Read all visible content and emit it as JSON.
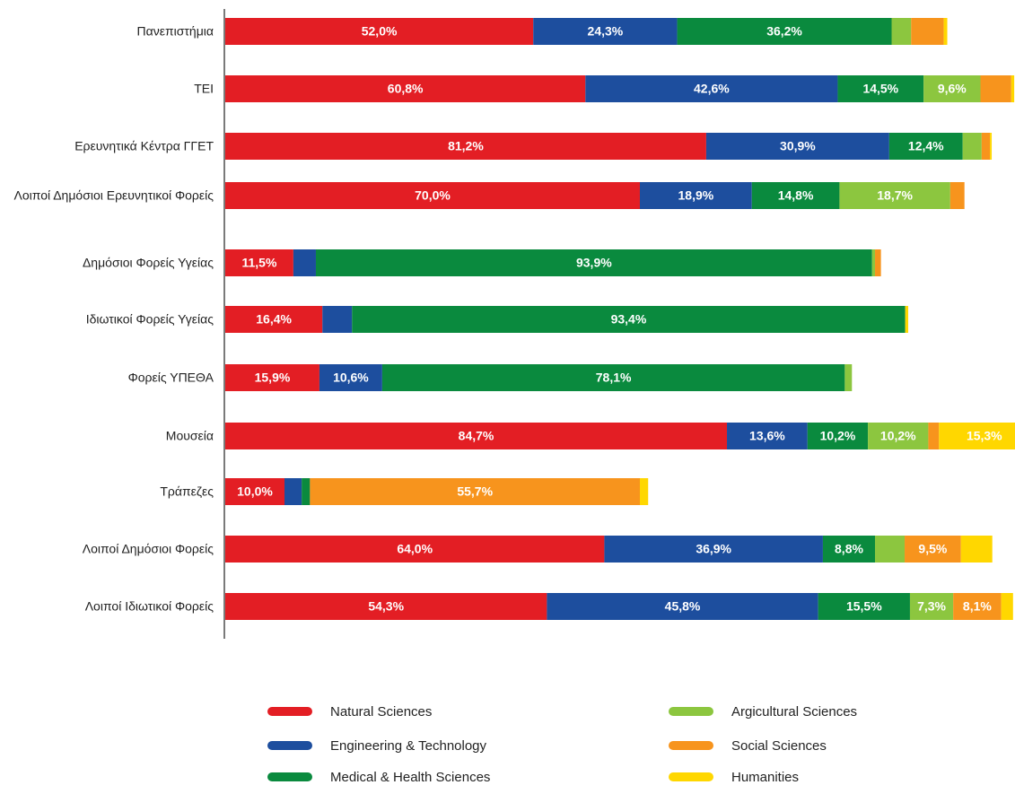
{
  "chart_data": {
    "type": "stacked-barh",
    "categories": [
      "Πανεπιστήμια",
      "ΤΕΙ",
      "Ερευνητικά Κέντρα ΓΓΕΤ",
      "Λοιποί Δημόσιοι Ερευνητικοί Φορείς",
      "Δημόσιοι Φορείς Υγείας",
      "Ιδιωτικοί Φορείς Υγείας",
      "Φορείς ΥΠΕΘΑ",
      "Μουσεία",
      "Τράπεζες",
      "Λοιποί Δημόσιοι Φορείς",
      "Λοιποί Ιδιωτικοί Φορείς"
    ],
    "series": [
      {
        "name": "Natural Sciences",
        "color": "#e31e24",
        "values": [
          52.0,
          60.8,
          81.2,
          70.0,
          11.5,
          16.4,
          15.9,
          84.7,
          10.0,
          64.0,
          54.3
        ],
        "value_labels": [
          "52,0%",
          "60,8%",
          "81,2%",
          "70,0%",
          "11,5%",
          "16,4%",
          "15,9%",
          "84,7%",
          "10,0%",
          "64,0%",
          "54,3%"
        ]
      },
      {
        "name": "Engineering & Technology",
        "color": "#1d4e9e",
        "values": [
          24.3,
          42.6,
          30.9,
          18.9,
          3.8,
          5.0,
          10.6,
          13.6,
          2.9,
          36.9,
          45.8
        ],
        "value_labels": [
          "24,3%",
          "42,6%",
          "30,9%",
          "18,9%",
          null,
          null,
          "10,6%",
          "13,6%",
          null,
          "36,9%",
          "45,8%"
        ]
      },
      {
        "name": "Medical & Health Sciences",
        "color": "#0a8a3e",
        "values": [
          36.2,
          14.5,
          12.4,
          14.8,
          93.9,
          93.4,
          78.1,
          10.2,
          1.4,
          8.8,
          15.5
        ],
        "value_labels": [
          "36,2%",
          "14,5%",
          "12,4%",
          "14,8%",
          "93,9%",
          "93,4%",
          "78,1%",
          "10,2%",
          null,
          "8,8%",
          "15,5%"
        ]
      },
      {
        "name": "Argicultural Sciences",
        "color": "#8cc63f",
        "values": [
          3.3,
          9.6,
          3.2,
          18.7,
          0.5,
          null,
          1.2,
          10.2,
          null,
          5.0,
          7.3
        ],
        "value_labels": [
          null,
          "9,6%",
          null,
          "18,7%",
          null,
          null,
          null,
          "10,2%",
          null,
          null,
          "7,3%"
        ]
      },
      {
        "name": "Social Sciences",
        "color": "#f7941d",
        "values": [
          5.5,
          5.2,
          1.4,
          2.4,
          1.0,
          null,
          null,
          1.8,
          55.7,
          9.5,
          8.1
        ],
        "value_labels": [
          null,
          null,
          null,
          null,
          null,
          null,
          null,
          null,
          "55,7%",
          "9,5%",
          "8,1%"
        ]
      },
      {
        "name": "Humanities",
        "color": "#ffd700",
        "values": [
          0.6,
          0.5,
          0.3,
          null,
          null,
          0.5,
          null,
          15.3,
          1.4,
          5.3,
          2.0
        ],
        "value_labels": [
          null,
          null,
          null,
          null,
          null,
          null,
          null,
          "15,3%",
          null,
          null,
          null
        ]
      }
    ]
  }
}
